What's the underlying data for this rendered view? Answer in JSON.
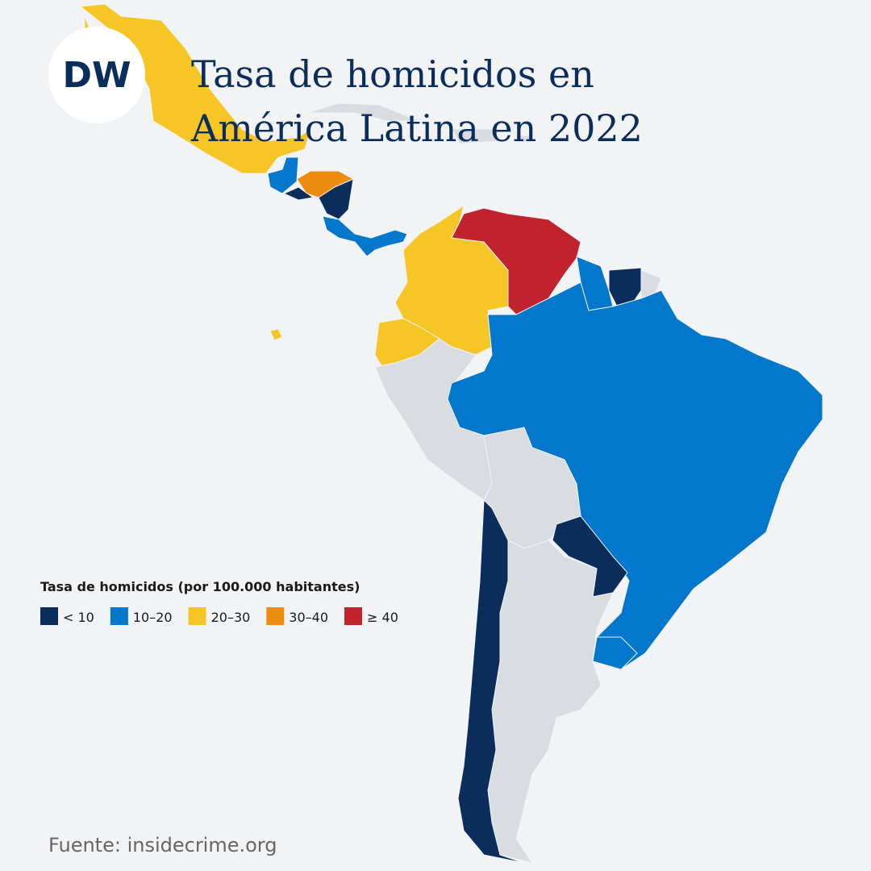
{
  "header": {
    "logo": "DW",
    "title_lines": [
      "Tasa de homicidos en",
      "América Latina en 2022"
    ]
  },
  "legend": {
    "title": "Tasa de homicidos (por 100.000 habitantes)",
    "items": [
      {
        "label": "< 10",
        "color": "#0b2d5b"
      },
      {
        "label": "10–20",
        "color": "#0277cc"
      },
      {
        "label": "20–30",
        "color": "#f6c627"
      },
      {
        "label": "30–40",
        "color": "#ee8c10"
      },
      {
        "label": "≥ 40",
        "color": "#c0222e"
      }
    ]
  },
  "source": "Fuente: insidecrime.org"
}
